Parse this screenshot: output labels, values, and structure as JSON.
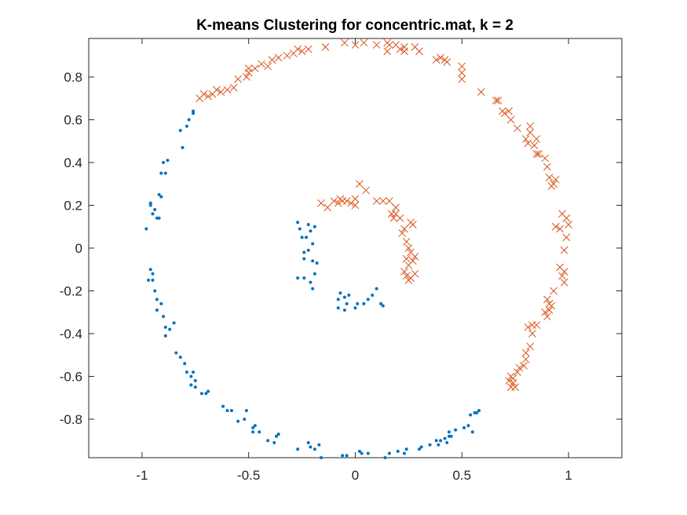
{
  "chart_data": {
    "type": "scatter",
    "title": "K-means Clustering for concentric.mat, k = 2",
    "xlabel": "",
    "ylabel": "",
    "xlim": [
      -1.25,
      1.25
    ],
    "ylim": [
      -0.98,
      0.98
    ],
    "xticks": [
      "-1",
      "-0.5",
      "0",
      "0.5",
      "1"
    ],
    "yticks": [
      "0.8",
      "0.6",
      "0.4",
      "0.2",
      "0",
      "-0.2",
      "-0.4",
      "-0.6",
      "-0.8"
    ],
    "grid": false,
    "legend": "none",
    "series": [
      {
        "marker": "dot",
        "color": "#0072BD",
        "points": [
          [
            -0.98,
            0.09
          ],
          [
            -0.96,
            0.2
          ],
          [
            -0.95,
            0.16
          ],
          [
            -0.94,
            0.18
          ],
          [
            -0.93,
            0.14
          ],
          [
            -0.92,
            0.14
          ],
          [
            -0.96,
            0.21
          ],
          [
            -0.92,
            0.25
          ],
          [
            -0.91,
            0.24
          ],
          [
            -0.91,
            0.35
          ],
          [
            -0.89,
            0.35
          ],
          [
            -0.9,
            0.4
          ],
          [
            -0.88,
            0.41
          ],
          [
            -0.81,
            0.47
          ],
          [
            -0.82,
            0.55
          ],
          [
            -0.79,
            0.57
          ],
          [
            -0.78,
            0.6
          ],
          [
            -0.76,
            0.63
          ],
          [
            -0.76,
            0.64
          ],
          [
            -0.96,
            -0.1
          ],
          [
            -0.97,
            -0.15
          ],
          [
            -0.95,
            -0.12
          ],
          [
            -0.95,
            -0.15
          ],
          [
            -0.94,
            -0.2
          ],
          [
            -0.93,
            -0.24
          ],
          [
            -0.93,
            -0.29
          ],
          [
            -0.91,
            -0.26
          ],
          [
            -0.9,
            -0.32
          ],
          [
            -0.89,
            -0.37
          ],
          [
            -0.89,
            -0.41
          ],
          [
            -0.87,
            -0.38
          ],
          [
            -0.85,
            -0.35
          ],
          [
            -0.84,
            -0.49
          ],
          [
            -0.82,
            -0.51
          ],
          [
            -0.8,
            -0.54
          ],
          [
            -0.79,
            -0.58
          ],
          [
            -0.77,
            -0.6
          ],
          [
            -0.77,
            -0.64
          ],
          [
            -0.76,
            -0.58
          ],
          [
            -0.75,
            -0.62
          ],
          [
            -0.75,
            -0.65
          ],
          [
            -0.72,
            -0.68
          ],
          [
            -0.7,
            -0.68
          ],
          [
            -0.69,
            -0.67
          ],
          [
            -0.62,
            -0.74
          ],
          [
            -0.6,
            -0.76
          ],
          [
            -0.58,
            -0.76
          ],
          [
            -0.55,
            -0.81
          ],
          [
            -0.52,
            -0.8
          ],
          [
            -0.51,
            -0.76
          ],
          [
            -0.48,
            -0.84
          ],
          [
            -0.48,
            -0.86
          ],
          [
            -0.47,
            -0.83
          ],
          [
            -0.45,
            -0.86
          ],
          [
            -0.41,
            -0.9
          ],
          [
            -0.38,
            -0.91
          ],
          [
            -0.37,
            -0.88
          ],
          [
            -0.36,
            -0.87
          ],
          [
            -0.27,
            -0.94
          ],
          [
            -0.22,
            -0.91
          ],
          [
            -0.21,
            -0.93
          ],
          [
            -0.19,
            -0.94
          ],
          [
            -0.17,
            -0.92
          ],
          [
            -0.16,
            -0.98
          ],
          [
            -0.06,
            -0.97
          ],
          [
            -0.04,
            -0.97
          ],
          [
            0.02,
            -0.95
          ],
          [
            0.03,
            -0.96
          ],
          [
            0.06,
            -0.96
          ],
          [
            0.14,
            -0.98
          ],
          [
            0.16,
            -0.96
          ],
          [
            0.2,
            -0.95
          ],
          [
            0.23,
            -0.96
          ],
          [
            0.24,
            -0.94
          ],
          [
            0.3,
            -0.94
          ],
          [
            0.31,
            -0.93
          ],
          [
            0.35,
            -0.92
          ],
          [
            0.38,
            -0.9
          ],
          [
            0.39,
            -0.92
          ],
          [
            0.4,
            -0.9
          ],
          [
            0.42,
            -0.89
          ],
          [
            0.43,
            -0.91
          ],
          [
            0.44,
            -0.88
          ],
          [
            0.45,
            -0.88
          ],
          [
            0.44,
            -0.86
          ],
          [
            0.47,
            -0.85
          ],
          [
            0.51,
            -0.84
          ],
          [
            0.53,
            -0.83
          ],
          [
            0.55,
            -0.86
          ],
          [
            0.56,
            -0.77
          ],
          [
            0.57,
            -0.77
          ],
          [
            0.58,
            -0.76
          ],
          [
            0.54,
            -0.78
          ],
          [
            -0.27,
            0.12
          ],
          [
            -0.26,
            0.09
          ],
          [
            -0.25,
            0.05
          ],
          [
            -0.23,
            0.05
          ],
          [
            -0.22,
            0.11
          ],
          [
            -0.21,
            0.08
          ],
          [
            -0.19,
            0.1
          ],
          [
            -0.2,
            0.02
          ],
          [
            -0.22,
            -0.01
          ],
          [
            -0.2,
            -0.06
          ],
          [
            -0.24,
            -0.02
          ],
          [
            -0.24,
            -0.05
          ],
          [
            -0.27,
            -0.14
          ],
          [
            -0.24,
            -0.14
          ],
          [
            -0.21,
            -0.16
          ],
          [
            -0.2,
            -0.19
          ],
          [
            -0.19,
            -0.12
          ],
          [
            -0.18,
            -0.07
          ],
          [
            -0.08,
            -0.24
          ],
          [
            -0.08,
            -0.28
          ],
          [
            -0.07,
            -0.21
          ],
          [
            -0.05,
            -0.23
          ],
          [
            -0.05,
            -0.29
          ],
          [
            -0.04,
            -0.26
          ],
          [
            -0.03,
            -0.22
          ],
          [
            0.0,
            -0.28
          ],
          [
            0.01,
            -0.26
          ],
          [
            0.04,
            -0.26
          ],
          [
            0.06,
            -0.24
          ],
          [
            0.08,
            -0.22
          ],
          [
            0.1,
            -0.19
          ],
          [
            0.12,
            -0.26
          ],
          [
            0.13,
            -0.27
          ]
        ]
      },
      {
        "marker": "cross",
        "color": "#D95319",
        "points": [
          [
            -0.73,
            0.7
          ],
          [
            -0.71,
            0.72
          ],
          [
            -0.69,
            0.71
          ],
          [
            -0.67,
            0.72
          ],
          [
            -0.65,
            0.74
          ],
          [
            -0.63,
            0.73
          ],
          [
            -0.6,
            0.74
          ],
          [
            -0.57,
            0.75
          ],
          [
            -0.55,
            0.79
          ],
          [
            -0.51,
            0.8
          ],
          [
            -0.5,
            0.82
          ],
          [
            -0.5,
            0.84
          ],
          [
            -0.47,
            0.84
          ],
          [
            -0.44,
            0.86
          ],
          [
            -0.41,
            0.85
          ],
          [
            -0.39,
            0.88
          ],
          [
            -0.36,
            0.89
          ],
          [
            -0.32,
            0.9
          ],
          [
            -0.29,
            0.91
          ],
          [
            -0.27,
            0.93
          ],
          [
            -0.25,
            0.92
          ],
          [
            -0.22,
            0.93
          ],
          [
            -0.14,
            0.94
          ],
          [
            -0.05,
            0.96
          ],
          [
            0.0,
            0.95
          ],
          [
            0.04,
            0.96
          ],
          [
            0.1,
            0.95
          ],
          [
            0.15,
            0.96
          ],
          [
            0.15,
            0.92
          ],
          [
            0.16,
            0.95
          ],
          [
            0.19,
            0.95
          ],
          [
            0.21,
            0.93
          ],
          [
            0.23,
            0.92
          ],
          [
            0.23,
            0.94
          ],
          [
            0.28,
            0.94
          ],
          [
            0.3,
            0.92
          ],
          [
            0.38,
            0.88
          ],
          [
            0.4,
            0.89
          ],
          [
            0.42,
            0.88
          ],
          [
            0.43,
            0.87
          ],
          [
            0.5,
            0.85
          ],
          [
            0.5,
            0.82
          ],
          [
            0.5,
            0.79
          ],
          [
            0.59,
            0.73
          ],
          [
            0.66,
            0.69
          ],
          [
            0.67,
            0.69
          ],
          [
            0.69,
            0.64
          ],
          [
            0.7,
            0.63
          ],
          [
            0.72,
            0.64
          ],
          [
            0.73,
            0.6
          ],
          [
            0.76,
            0.56
          ],
          [
            0.8,
            0.51
          ],
          [
            0.81,
            0.49
          ],
          [
            0.82,
            0.54
          ],
          [
            0.82,
            0.57
          ],
          [
            0.84,
            0.48
          ],
          [
            0.85,
            0.44
          ],
          [
            0.85,
            0.51
          ],
          [
            0.86,
            0.44
          ],
          [
            0.89,
            0.42
          ],
          [
            0.9,
            0.38
          ],
          [
            0.91,
            0.33
          ],
          [
            0.92,
            0.29
          ],
          [
            0.93,
            0.3
          ],
          [
            0.94,
            0.32
          ],
          [
            0.97,
            0.16
          ],
          [
            0.99,
            0.14
          ],
          [
            1.0,
            0.11
          ],
          [
            0.99,
            0.05
          ],
          [
            0.94,
            0.1
          ],
          [
            0.96,
            0.09
          ],
          [
            0.98,
            -0.01
          ],
          [
            0.96,
            -0.09
          ],
          [
            0.97,
            -0.13
          ],
          [
            0.98,
            -0.16
          ],
          [
            0.98,
            -0.11
          ],
          [
            0.93,
            -0.2
          ],
          [
            0.92,
            -0.27
          ],
          [
            0.9,
            -0.24
          ],
          [
            0.91,
            -0.29
          ],
          [
            0.9,
            -0.32
          ],
          [
            0.89,
            -0.3
          ],
          [
            0.91,
            -0.26
          ],
          [
            0.85,
            -0.36
          ],
          [
            0.83,
            -0.36
          ],
          [
            0.83,
            -0.4
          ],
          [
            0.81,
            -0.37
          ],
          [
            0.82,
            -0.46
          ],
          [
            0.8,
            -0.49
          ],
          [
            0.8,
            -0.52
          ],
          [
            0.79,
            -0.55
          ],
          [
            0.77,
            -0.56
          ],
          [
            0.76,
            -0.58
          ],
          [
            0.74,
            -0.61
          ],
          [
            0.73,
            -0.6
          ],
          [
            0.74,
            -0.63
          ],
          [
            0.75,
            -0.65
          ],
          [
            0.73,
            -0.65
          ],
          [
            0.72,
            -0.62
          ],
          [
            -0.16,
            0.21
          ],
          [
            -0.13,
            0.19
          ],
          [
            -0.1,
            0.22
          ],
          [
            -0.08,
            0.21
          ],
          [
            -0.07,
            0.23
          ],
          [
            -0.06,
            0.22
          ],
          [
            -0.04,
            0.22
          ],
          [
            -0.02,
            0.21
          ],
          [
            0.0,
            0.2
          ],
          [
            0.0,
            0.23
          ],
          [
            0.02,
            0.3
          ],
          [
            0.05,
            0.27
          ],
          [
            0.1,
            0.22
          ],
          [
            0.13,
            0.22
          ],
          [
            0.16,
            0.22
          ],
          [
            0.17,
            0.16
          ],
          [
            0.18,
            0.14
          ],
          [
            0.19,
            0.19
          ],
          [
            0.19,
            0.16
          ],
          [
            0.21,
            0.14
          ],
          [
            0.22,
            0.07
          ],
          [
            0.23,
            0.09
          ],
          [
            0.24,
            0.03
          ],
          [
            0.25,
            0.0
          ],
          [
            0.26,
            0.12
          ],
          [
            0.27,
            0.11
          ],
          [
            0.26,
            -0.02
          ],
          [
            0.24,
            -0.05
          ],
          [
            0.25,
            -0.08
          ],
          [
            0.27,
            -0.06
          ],
          [
            0.28,
            -0.04
          ],
          [
            0.23,
            -0.11
          ],
          [
            0.24,
            -0.13
          ],
          [
            0.25,
            -0.15
          ],
          [
            0.26,
            -0.14
          ],
          [
            0.28,
            -0.12
          ]
        ]
      }
    ]
  }
}
